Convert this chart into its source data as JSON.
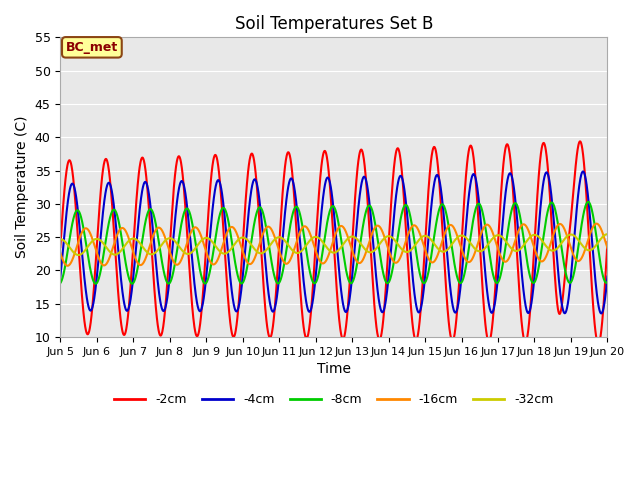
{
  "title": "Soil Temperatures Set B",
  "xlabel": "Time",
  "ylabel": "Soil Temperature (C)",
  "ylim": [
    10,
    55
  ],
  "xlim": [
    0,
    15
  ],
  "x_tick_labels": [
    "Jun 5",
    "Jun 6",
    "Jun 7",
    "Jun 8",
    "Jun 9",
    "Jun 10",
    "Jun 11",
    "Jun 12",
    "Jun 13",
    "Jun 14",
    "Jun 15",
    "Jun 16",
    "Jun 17",
    "Jun 18",
    "Jun 19",
    "Jun 20"
  ],
  "x_tick_positions": [
    0,
    1,
    2,
    3,
    4,
    5,
    6,
    7,
    8,
    9,
    10,
    11,
    12,
    13,
    14,
    15
  ],
  "y_ticks": [
    10,
    15,
    20,
    25,
    30,
    35,
    40,
    45,
    50,
    55
  ],
  "line_colors": [
    "#ff0000",
    "#0000cc",
    "#00cc00",
    "#ff8800",
    "#cccc00"
  ],
  "line_labels": [
    "-2cm",
    "-4cm",
    "-8cm",
    "-16cm",
    "-32cm"
  ],
  "line_widths": [
    1.5,
    1.5,
    1.5,
    1.5,
    1.5
  ],
  "annotation_text": "BC_met",
  "plot_bg_color": "#e8e8e8",
  "grid_color": "#ffffff",
  "mean_base": 23.5,
  "amp_2cm": 13.0,
  "amp_4cm": 9.5,
  "amp_8cm": 5.5,
  "amp_16cm": 2.8,
  "amp_32cm": 1.2,
  "phase_2cm": 0.0,
  "phase_4cm": 0.08,
  "phase_8cm": 0.22,
  "phase_16cm": 0.45,
  "phase_32cm": 0.75,
  "amp_growth_2cm": 0.15,
  "amp_growth_4cm": 0.08,
  "amp_growth_8cm": 0.04,
  "mean_growth": 0.05
}
